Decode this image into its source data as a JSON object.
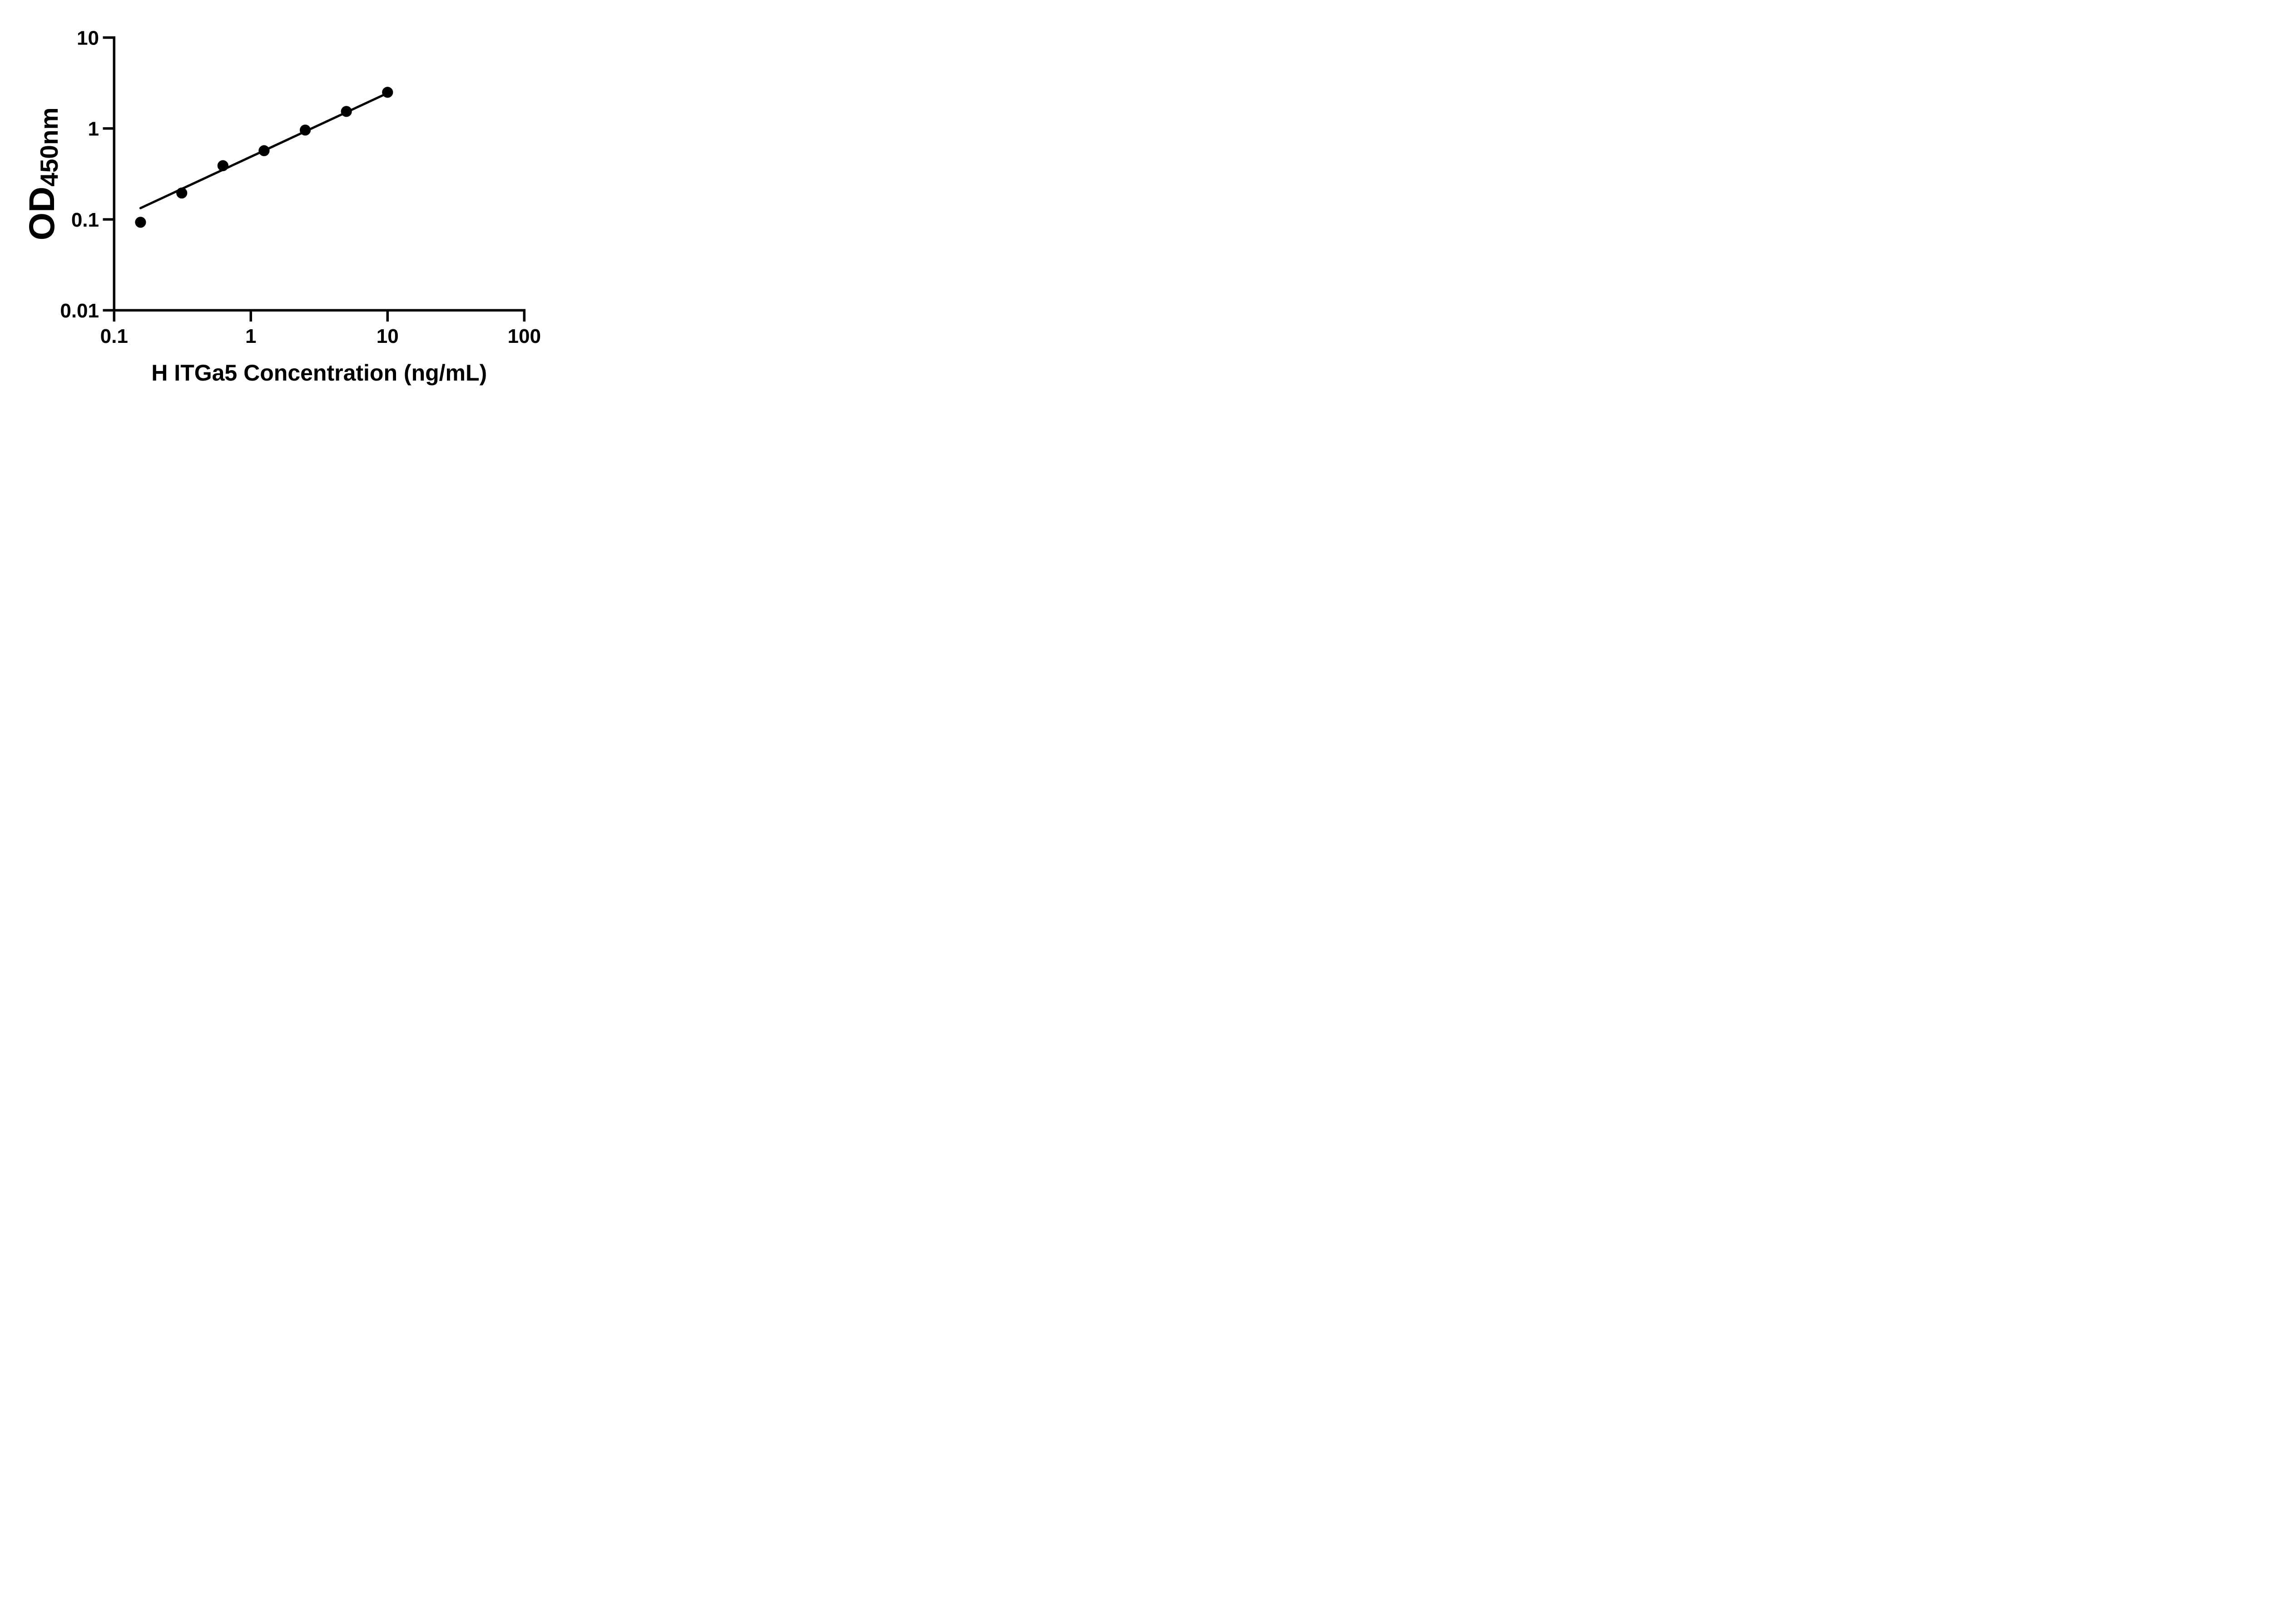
{
  "figure": {
    "background_color": "#ffffff",
    "ink_color": "#000000"
  },
  "chart_data": {
    "type": "scatter",
    "title": "",
    "xlabel": "H ITGa5 Concentration (ng/mL)",
    "ylabel_base": "OD",
    "ylabel_subscript": "450nm",
    "x_scale": "log",
    "y_scale": "log",
    "xlim": [
      0.1,
      100
    ],
    "ylim": [
      0.01,
      10
    ],
    "grid": false,
    "legend": null,
    "x_ticks": [
      {
        "value": 0.1,
        "label": "0.1"
      },
      {
        "value": 1,
        "label": "1"
      },
      {
        "value": 10,
        "label": "10"
      },
      {
        "value": 100,
        "label": "100"
      }
    ],
    "y_ticks": [
      {
        "value": 10,
        "label": "10"
      },
      {
        "value": 1,
        "label": "1"
      },
      {
        "value": 0.1,
        "label": "0.1"
      },
      {
        "value": 0.01,
        "label": "0.01"
      }
    ],
    "series": [
      {
        "name": "standard-curve-points",
        "marker": "filled-circle",
        "color": "#000000",
        "points": [
          {
            "x": 0.156,
            "y": 0.093
          },
          {
            "x": 0.3125,
            "y": 0.195
          },
          {
            "x": 0.625,
            "y": 0.39
          },
          {
            "x": 1.25,
            "y": 0.57
          },
          {
            "x": 2.5,
            "y": 0.96
          },
          {
            "x": 5,
            "y": 1.54
          },
          {
            "x": 10,
            "y": 2.5
          }
        ]
      }
    ],
    "trend_line": {
      "x1": 0.156,
      "y1": 0.133,
      "x2": 10,
      "y2": 2.45,
      "color": "#000000"
    }
  }
}
